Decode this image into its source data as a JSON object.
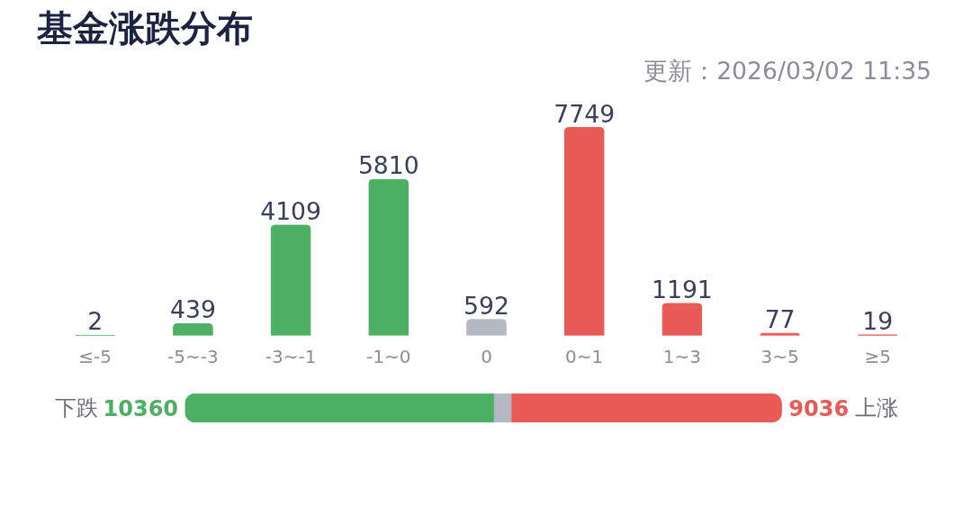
{
  "chart_data": [
    {
      "type": "bar",
      "title": "基金涨跌分布",
      "annotations": [
        "更新：2026/03/02 11:35"
      ],
      "categories": [
        "≤-5",
        "-5~-3",
        "-3~-1",
        "-1~0",
        "0",
        "0~1",
        "1~3",
        "3~5",
        "≥5"
      ],
      "values": [
        2,
        439,
        4109,
        5810,
        592,
        7749,
        1191,
        77,
        19
      ],
      "colors": [
        "#4caf64",
        "#4caf64",
        "#4caf64",
        "#4caf64",
        "#b4b8c2",
        "#e85a55",
        "#e85a55",
        "#e85a55",
        "#e85a55"
      ],
      "data_labels": true
    },
    {
      "type": "bar",
      "orientation": "horizontal",
      "stacked": true,
      "categories": [
        null
      ],
      "annotations": [
        "下跌",
        "上涨"
      ],
      "series": [
        {
          "color": "#4caf64",
          "values": [
            10360
          ],
          "value_labels": [
            "10360"
          ]
        },
        {
          "color": "#b4b8c2",
          "values": [
            592
          ]
        },
        {
          "color": "#e85a55",
          "values": [
            9036
          ],
          "value_labels": [
            "9036"
          ]
        }
      ]
    }
  ]
}
